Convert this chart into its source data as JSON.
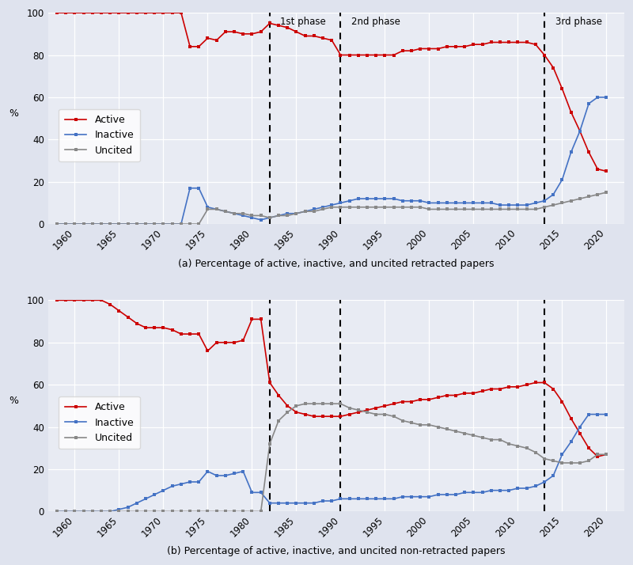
{
  "phase_lines": [
    1982,
    1990,
    2013
  ],
  "phase_labels": [
    "1st phase",
    "2nd phase",
    "3rd phase"
  ],
  "bg_color": "#e8ebf3",
  "active_color": "#cc0000",
  "inactive_color": "#4472c4",
  "uncited_color": "#888888",
  "fig_bg": "#dfe3ee",
  "top_years": [
    1958,
    1959,
    1960,
    1961,
    1962,
    1963,
    1964,
    1965,
    1966,
    1967,
    1968,
    1969,
    1970,
    1971,
    1972,
    1973,
    1974,
    1975,
    1976,
    1977,
    1978,
    1979,
    1980,
    1981,
    1982,
    1983,
    1984,
    1985,
    1986,
    1987,
    1988,
    1989,
    1990,
    1991,
    1992,
    1993,
    1994,
    1995,
    1996,
    1997,
    1998,
    1999,
    2000,
    2001,
    2002,
    2003,
    2004,
    2005,
    2006,
    2007,
    2008,
    2009,
    2010,
    2011,
    2012,
    2013,
    2014,
    2015,
    2016,
    2017,
    2018,
    2019,
    2020
  ],
  "top_active": [
    100,
    100,
    100,
    100,
    100,
    100,
    100,
    100,
    100,
    100,
    100,
    100,
    100,
    100,
    100,
    84,
    84,
    88,
    87,
    91,
    91,
    90,
    90,
    91,
    95,
    94,
    93,
    91,
    89,
    89,
    88,
    87,
    80,
    80,
    80,
    80,
    80,
    80,
    80,
    82,
    82,
    83,
    83,
    83,
    84,
    84,
    84,
    85,
    85,
    86,
    86,
    86,
    86,
    86,
    85,
    80,
    74,
    64,
    53,
    44,
    34,
    26,
    25
  ],
  "top_inactive": [
    0,
    0,
    0,
    0,
    0,
    0,
    0,
    0,
    0,
    0,
    0,
    0,
    0,
    0,
    0,
    17,
    17,
    8,
    7,
    6,
    5,
    4,
    3,
    2,
    3,
    4,
    5,
    5,
    6,
    7,
    8,
    9,
    10,
    11,
    12,
    12,
    12,
    12,
    12,
    11,
    11,
    11,
    10,
    10,
    10,
    10,
    10,
    10,
    10,
    10,
    9,
    9,
    9,
    9,
    10,
    11,
    14,
    21,
    34,
    44,
    57,
    60,
    60
  ],
  "top_uncited": [
    0,
    0,
    0,
    0,
    0,
    0,
    0,
    0,
    0,
    0,
    0,
    0,
    0,
    0,
    0,
    0,
    0,
    7,
    7,
    6,
    5,
    5,
    4,
    4,
    3,
    4,
    4,
    5,
    6,
    6,
    7,
    8,
    8,
    8,
    8,
    8,
    8,
    8,
    8,
    8,
    8,
    8,
    7,
    7,
    7,
    7,
    7,
    7,
    7,
    7,
    7,
    7,
    7,
    7,
    7,
    8,
    9,
    10,
    11,
    12,
    13,
    14,
    15
  ],
  "bot_years": [
    1958,
    1959,
    1960,
    1961,
    1962,
    1963,
    1964,
    1965,
    1966,
    1967,
    1968,
    1969,
    1970,
    1971,
    1972,
    1973,
    1974,
    1975,
    1976,
    1977,
    1978,
    1979,
    1980,
    1981,
    1982,
    1983,
    1984,
    1985,
    1986,
    1987,
    1988,
    1989,
    1990,
    1991,
    1992,
    1993,
    1994,
    1995,
    1996,
    1997,
    1998,
    1999,
    2000,
    2001,
    2002,
    2003,
    2004,
    2005,
    2006,
    2007,
    2008,
    2009,
    2010,
    2011,
    2012,
    2013,
    2014,
    2015,
    2016,
    2017,
    2018,
    2019,
    2020
  ],
  "bot_active": [
    100,
    100,
    100,
    100,
    100,
    100,
    98,
    95,
    92,
    89,
    87,
    87,
    87,
    86,
    84,
    84,
    84,
    76,
    80,
    80,
    80,
    81,
    91,
    91,
    61,
    55,
    50,
    47,
    46,
    45,
    45,
    45,
    45,
    46,
    47,
    48,
    49,
    50,
    51,
    52,
    52,
    53,
    53,
    54,
    55,
    55,
    56,
    56,
    57,
    58,
    58,
    59,
    59,
    60,
    61,
    61,
    58,
    52,
    44,
    37,
    30,
    26,
    27
  ],
  "bot_inactive": [
    0,
    0,
    0,
    0,
    0,
    0,
    0,
    1,
    2,
    4,
    6,
    8,
    10,
    12,
    13,
    14,
    14,
    19,
    17,
    17,
    18,
    19,
    9,
    9,
    4,
    4,
    4,
    4,
    4,
    4,
    5,
    5,
    6,
    6,
    6,
    6,
    6,
    6,
    6,
    7,
    7,
    7,
    7,
    8,
    8,
    8,
    9,
    9,
    9,
    10,
    10,
    10,
    11,
    11,
    12,
    14,
    17,
    27,
    33,
    40,
    46,
    46,
    46
  ],
  "bot_uncited": [
    0,
    0,
    0,
    0,
    0,
    0,
    0,
    0,
    0,
    0,
    0,
    0,
    0,
    0,
    0,
    0,
    0,
    0,
    0,
    0,
    0,
    0,
    0,
    0,
    32,
    43,
    47,
    50,
    51,
    51,
    51,
    51,
    51,
    49,
    48,
    47,
    46,
    46,
    45,
    43,
    42,
    41,
    41,
    40,
    39,
    38,
    37,
    36,
    35,
    34,
    34,
    32,
    31,
    30,
    28,
    25,
    24,
    23,
    23,
    23,
    24,
    27,
    27
  ],
  "xlabel_top": "(a) Percentage of active, inactive, and uncited retracted papers",
  "xlabel_bot": "(b) Percentage of active, inactive, and uncited non-retracted papers",
  "ylabel": "%",
  "xlim": [
    1957,
    2022
  ],
  "ylim": [
    0,
    100
  ],
  "xticks": [
    1960,
    1965,
    1970,
    1975,
    1980,
    1985,
    1990,
    1995,
    2000,
    2005,
    2010,
    2015,
    2020
  ]
}
